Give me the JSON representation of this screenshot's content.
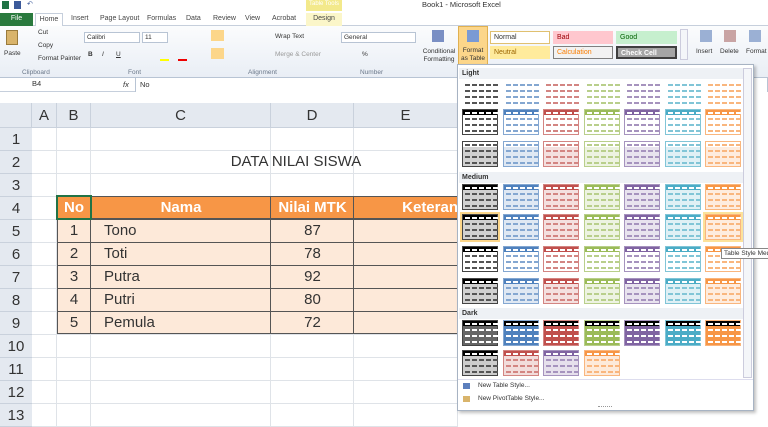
{
  "window": {
    "title": "Book1 - Microsoft Excel",
    "contextual_tab": "Table Tools"
  },
  "tabs": [
    "File",
    "Home",
    "Insert",
    "Page Layout",
    "Formulas",
    "Data",
    "Review",
    "View",
    "Acrobat",
    "Design"
  ],
  "ribbon": {
    "clipboard": {
      "paste": "Paste",
      "cut": "Cut",
      "copy": "Copy",
      "format_painter": "Format Painter",
      "label": "Clipboard"
    },
    "font": {
      "name": "Calibri",
      "size": "11",
      "label": "Font",
      "bold": "B",
      "italic": "I",
      "underline": "U"
    },
    "alignment": {
      "wrap": "Wrap Text",
      "merge": "Merge & Center",
      "label": "Alignment"
    },
    "number": {
      "format": "General",
      "label": "Number",
      "percent": "%"
    },
    "styles": {
      "conditional": "Conditional Formatting",
      "format_table": "Format as Table",
      "cell_styles": [
        "Normal",
        "Bad",
        "Good",
        "Neutral",
        "Calculation",
        "Check Cell"
      ]
    },
    "cells": {
      "insert": "Insert",
      "delete": "Delete",
      "format": "Format"
    }
  },
  "formula_bar": {
    "name_box": "B4",
    "fx": "fx",
    "content": "No"
  },
  "sheet": {
    "columns": [
      "A",
      "B",
      "C",
      "D",
      "E"
    ],
    "rows": [
      "1",
      "2",
      "3",
      "4",
      "5",
      "6",
      "7",
      "8",
      "9",
      "10",
      "11",
      "12",
      "13"
    ],
    "title": "DATA NILAI SISWA",
    "headers": [
      "No",
      "Nama",
      "Nilai MTK",
      "Keteran"
    ],
    "data": [
      [
        "1",
        "Tono",
        "87"
      ],
      [
        "2",
        "Toti",
        "78"
      ],
      [
        "3",
        "Putra",
        "92"
      ],
      [
        "4",
        "Putri",
        "80"
      ],
      [
        "5",
        "Pemula",
        "72"
      ]
    ],
    "header_color": "#f79646",
    "row_color": "#fde9d9"
  },
  "gallery": {
    "sections": [
      "Light",
      "Medium",
      "Dark"
    ],
    "palette": [
      "#000000",
      "#4f81bd",
      "#c0504d",
      "#9bbb59",
      "#8064a2",
      "#4bacc6",
      "#f79646"
    ],
    "new_table_style": "New Table Style...",
    "new_pivot_style": "New PivotTable Style...",
    "tooltip": "Table Style Medium"
  }
}
